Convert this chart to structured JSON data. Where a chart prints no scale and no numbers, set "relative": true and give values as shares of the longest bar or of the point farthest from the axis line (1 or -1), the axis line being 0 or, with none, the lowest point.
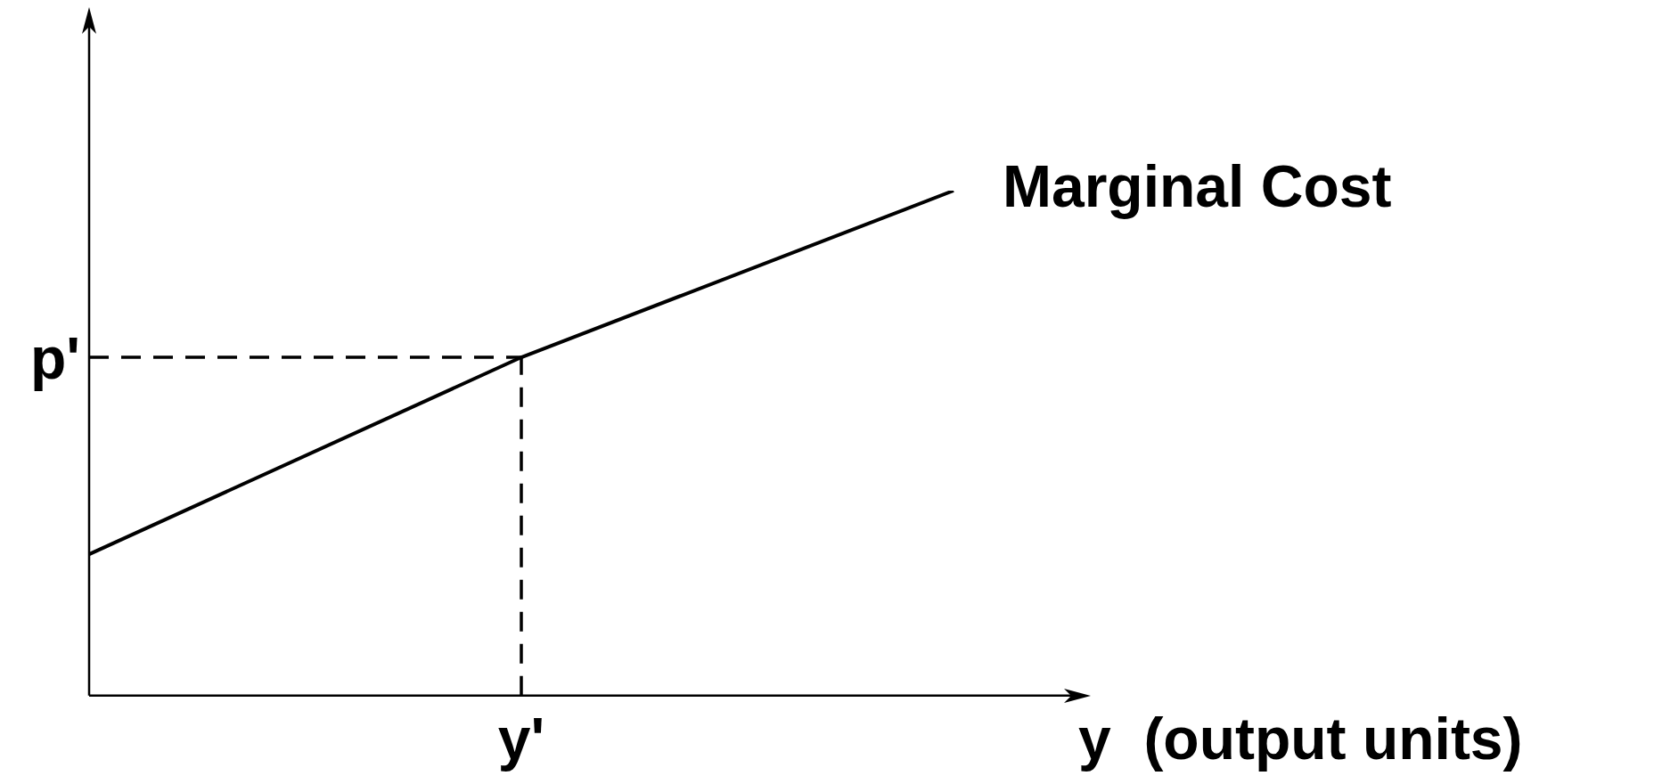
{
  "chart_data": {
    "type": "line",
    "relative": true,
    "xlabel": "y  (output units)",
    "categories": [
      null,
      null,
      null
    ],
    "series": [
      {
        "name": "Marginal Cost",
        "color": "#000000",
        "values": [
          0.28,
          0.67,
          1
        ]
      }
    ],
    "annotations": [
      "y'"
    ],
    "ref_lines": [
      {
        "axis": "y",
        "value": 0.67,
        "label": "p'",
        "color": "#000000",
        "line_style": "dashed"
      }
    ],
    "legend": false,
    "marker": "none",
    "line_style": "solid"
  }
}
